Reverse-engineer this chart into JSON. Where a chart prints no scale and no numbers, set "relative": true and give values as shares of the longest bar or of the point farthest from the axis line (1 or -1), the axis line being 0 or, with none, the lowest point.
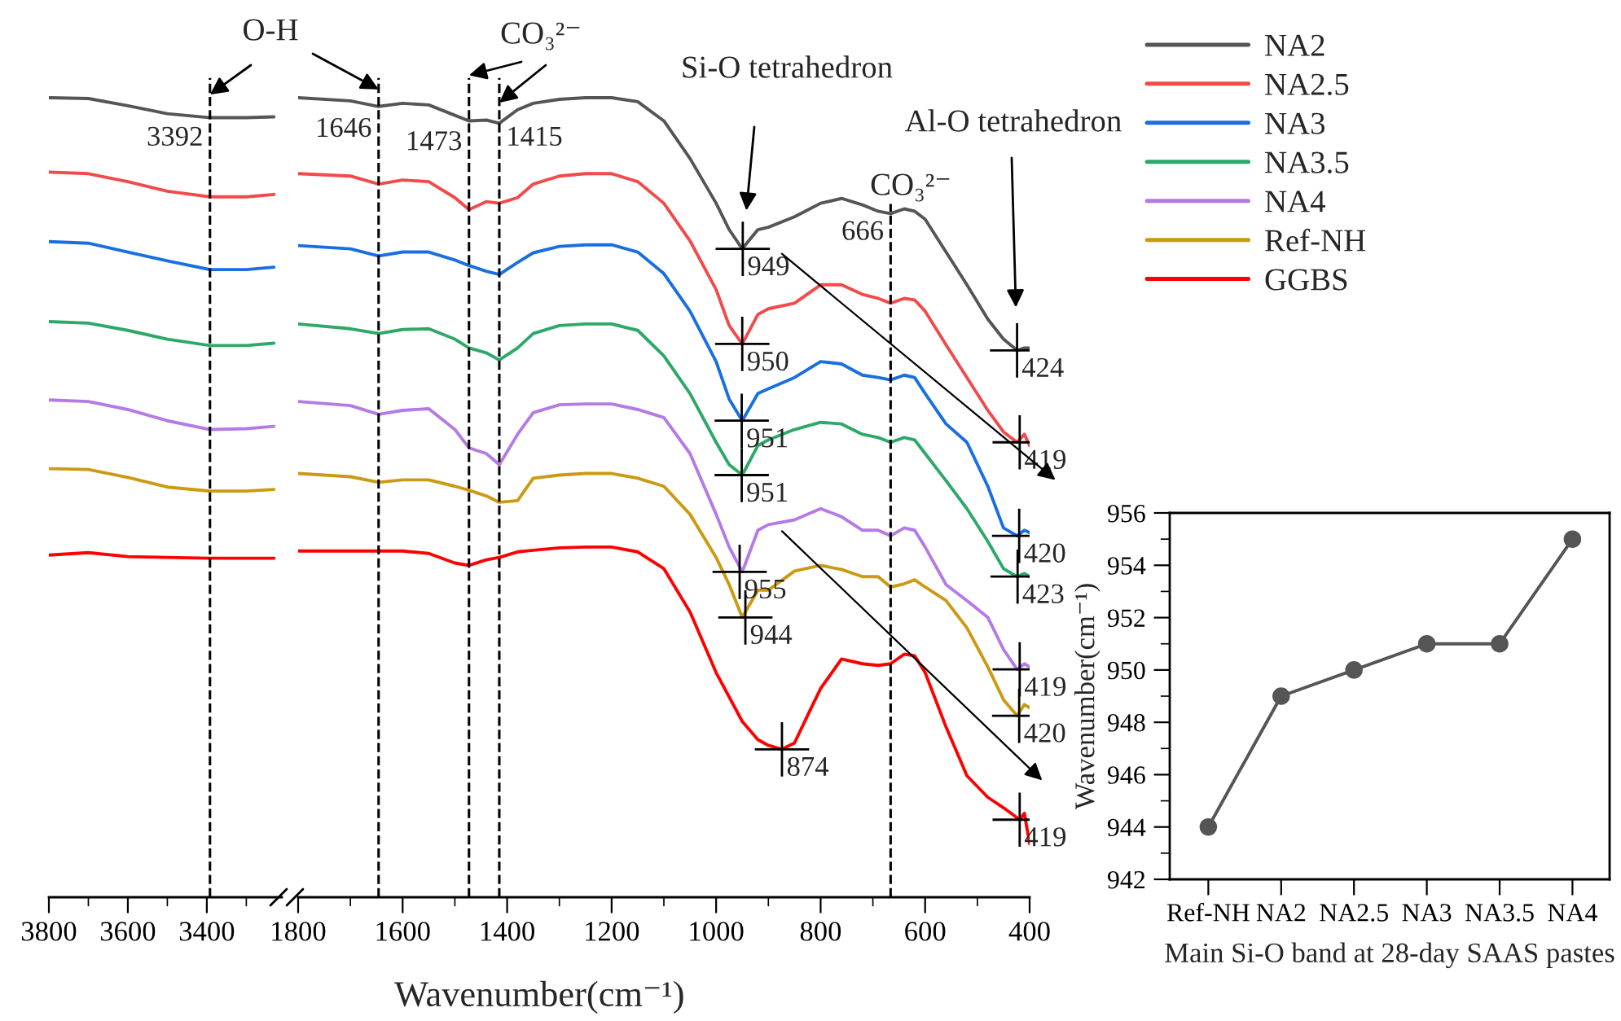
{
  "chart_data": [
    {
      "type": "line",
      "relative": true,
      "x": [
        3800,
        3700,
        3600,
        3500,
        3392,
        3300,
        3230
      ],
      "xlim": [
        3800,
        3210
      ],
      "xticks": [
        3800,
        {
          "value": 3700,
          "label": null
        },
        3600,
        {
          "value": 3500,
          "label": null
        },
        3400,
        {
          "value": 3300,
          "label": null
        }
      ],
      "series": [
        {
          "color": "#555555",
          "values": [
            1.0,
            0.999,
            0.99,
            0.98,
            0.975,
            0.975,
            0.976
          ]
        },
        {
          "color": "#f24a4a",
          "values": [
            0.907,
            0.905,
            0.895,
            0.883,
            0.876,
            0.876,
            0.879
          ]
        },
        {
          "color": "#1a6fe0",
          "values": [
            0.82,
            0.818,
            0.807,
            0.796,
            0.785,
            0.785,
            0.788
          ]
        },
        {
          "color": "#2ca868",
          "values": [
            0.72,
            0.718,
            0.709,
            0.698,
            0.69,
            0.69,
            0.693
          ]
        },
        {
          "color": "#b47ae6",
          "values": [
            0.622,
            0.62,
            0.61,
            0.596,
            0.585,
            0.586,
            0.589
          ]
        },
        {
          "color": "#cc9a12",
          "values": [
            0.536,
            0.535,
            0.525,
            0.513,
            0.508,
            0.508,
            0.51
          ]
        },
        {
          "color": "#ff0000",
          "values": [
            0.428,
            0.431,
            0.426,
            0.425,
            0.424,
            0.424,
            0.424
          ]
        }
      ],
      "ref_lines": [
        {
          "axis": "x",
          "value": 3392,
          "label": "3392"
        }
      ],
      "annotations": [
        "O-H"
      ]
    },
    {
      "type": "line",
      "relative": true,
      "xlabel": "Wavenumber(cm⁻¹)",
      "legend": "right",
      "x": [
        1800,
        1700,
        1646,
        1600,
        1550,
        1500,
        1473,
        1440,
        1415,
        1380,
        1350,
        1300,
        1250,
        1200,
        1150,
        1100,
        1050,
        1000,
        975,
        950,
        920,
        900,
        850,
        800,
        760,
        720,
        690,
        666,
        640,
        620,
        600,
        560,
        520,
        480,
        450,
        424,
        410,
        400
      ],
      "xlim": [
        1800,
        400
      ],
      "xticks": [
        1800,
        {
          "value": 1700,
          "label": null
        },
        1600,
        {
          "value": 1500,
          "label": null
        },
        1400,
        {
          "value": 1300,
          "label": null
        },
        1200,
        {
          "value": 1100,
          "label": null
        },
        1000,
        {
          "value": 900,
          "label": null
        },
        800,
        {
          "value": 700,
          "label": null
        },
        600,
        {
          "value": 500,
          "label": null
        },
        400
      ],
      "series": [
        {
          "name": "NA2",
          "color": "#555555",
          "values": [
            1.0,
            0.996,
            0.989,
            0.993,
            0.991,
            0.978,
            0.971,
            0.972,
            0.968,
            0.985,
            0.993,
            0.998,
            1.0,
            1.0,
            0.995,
            0.971,
            0.924,
            0.868,
            0.835,
            0.811,
            0.835,
            0.838,
            0.851,
            0.868,
            0.874,
            0.866,
            0.858,
            0.855,
            0.861,
            0.858,
            0.848,
            0.807,
            0.766,
            0.723,
            0.698,
            0.684,
            0.687,
            0.687
          ]
        },
        {
          "name": "NA2.5",
          "color": "#f24a4a",
          "values": [
            0.905,
            0.902,
            0.892,
            0.897,
            0.895,
            0.875,
            0.86,
            0.87,
            0.868,
            0.875,
            0.892,
            0.902,
            0.905,
            0.905,
            0.895,
            0.868,
            0.821,
            0.76,
            0.715,
            0.692,
            0.729,
            0.736,
            0.743,
            0.766,
            0.766,
            0.754,
            0.749,
            0.743,
            0.749,
            0.747,
            0.733,
            0.691,
            0.65,
            0.609,
            0.582,
            0.569,
            0.579,
            0.565
          ]
        },
        {
          "name": "NA3",
          "color": "#1a6fe0",
          "values": [
            0.815,
            0.811,
            0.802,
            0.807,
            0.807,
            0.797,
            0.79,
            0.783,
            0.779,
            0.794,
            0.806,
            0.814,
            0.816,
            0.816,
            0.807,
            0.78,
            0.733,
            0.67,
            0.623,
            0.596,
            0.63,
            0.636,
            0.65,
            0.67,
            0.667,
            0.653,
            0.65,
            0.647,
            0.653,
            0.65,
            0.63,
            0.592,
            0.569,
            0.514,
            0.462,
            0.452,
            0.459,
            0.456
          ]
        },
        {
          "name": "NA3.5",
          "color": "#2ca868",
          "values": [
            0.717,
            0.711,
            0.705,
            0.71,
            0.711,
            0.698,
            0.687,
            0.681,
            0.672,
            0.687,
            0.705,
            0.715,
            0.717,
            0.717,
            0.709,
            0.677,
            0.63,
            0.569,
            0.541,
            0.528,
            0.565,
            0.572,
            0.585,
            0.594,
            0.592,
            0.579,
            0.575,
            0.569,
            0.575,
            0.572,
            0.555,
            0.521,
            0.486,
            0.445,
            0.411,
            0.401,
            0.405,
            0.401
          ]
        },
        {
          "name": "NA4",
          "color": "#b47ae6",
          "values": [
            0.62,
            0.615,
            0.604,
            0.609,
            0.611,
            0.585,
            0.562,
            0.555,
            0.541,
            0.579,
            0.606,
            0.616,
            0.617,
            0.617,
            0.61,
            0.6,
            0.555,
            0.479,
            0.438,
            0.407,
            0.459,
            0.466,
            0.472,
            0.486,
            0.476,
            0.459,
            0.459,
            0.452,
            0.462,
            0.459,
            0.438,
            0.391,
            0.371,
            0.35,
            0.31,
            0.285,
            0.292,
            0.288
          ]
        },
        {
          "name": "Ref-NH",
          "color": "#cc9a12",
          "values": [
            0.53,
            0.526,
            0.519,
            0.522,
            0.522,
            0.514,
            0.509,
            0.502,
            0.494,
            0.496,
            0.524,
            0.528,
            0.53,
            0.53,
            0.524,
            0.514,
            0.479,
            0.425,
            0.391,
            0.35,
            0.384,
            0.384,
            0.408,
            0.415,
            0.41,
            0.401,
            0.401,
            0.388,
            0.392,
            0.397,
            0.388,
            0.371,
            0.337,
            0.288,
            0.247,
            0.227,
            0.241,
            0.237
          ]
        },
        {
          "name": "GGBS",
          "color": "#ff0000",
          "x": [
            1800,
            1700,
            1646,
            1600,
            1550,
            1500,
            1473,
            1440,
            1415,
            1380,
            1350,
            1300,
            1250,
            1200,
            1150,
            1100,
            1050,
            1000,
            950,
            920,
            900,
            874,
            850,
            820,
            800,
            760,
            720,
            690,
            666,
            640,
            620,
            600,
            560,
            520,
            480,
            450,
            419,
            410,
            400
          ],
          "values": [
            0.433,
            0.433,
            0.433,
            0.433,
            0.43,
            0.418,
            0.415,
            0.422,
            0.425,
            0.432,
            0.434,
            0.437,
            0.438,
            0.438,
            0.432,
            0.411,
            0.357,
            0.281,
            0.22,
            0.197,
            0.19,
            0.185,
            0.193,
            0.234,
            0.261,
            0.298,
            0.292,
            0.29,
            0.292,
            0.304,
            0.302,
            0.281,
            0.213,
            0.152,
            0.125,
            0.112,
            0.097,
            0.105,
            0.067
          ]
        }
      ],
      "ref_lines": [
        {
          "axis": "x",
          "value": 1646,
          "label": "1646"
        },
        {
          "axis": "x",
          "value": 1473,
          "label": "1473"
        },
        {
          "axis": "x",
          "value": 1415,
          "label": "1415"
        },
        {
          "axis": "x",
          "value": 666,
          "label": "666"
        }
      ],
      "annotations": [
        "CO₃²⁻",
        "Si-O tetrahedron",
        "Al-O tetrahedron",
        "CO₃²⁻",
        {
          "text": "949",
          "x": 949,
          "y": 0.811
        },
        {
          "text": "950",
          "x": 950,
          "y": 0.692
        },
        {
          "text": "951",
          "x": 951,
          "y": 0.596
        },
        {
          "text": "951",
          "x": 951,
          "y": 0.528
        },
        {
          "text": "955",
          "x": 955,
          "y": 0.407
        },
        {
          "text": "944",
          "x": 944,
          "y": 0.35
        },
        {
          "text": "874",
          "x": 874,
          "y": 0.185
        },
        {
          "text": "424",
          "x": 424,
          "y": 0.684
        },
        {
          "text": "419",
          "x": 419,
          "y": 0.569
        },
        {
          "text": "420",
          "x": 420,
          "y": 0.452
        },
        {
          "text": "423",
          "x": 423,
          "y": 0.401
        },
        {
          "text": "419",
          "x": 419,
          "y": 0.285
        },
        {
          "text": "420",
          "x": 420,
          "y": 0.227
        },
        {
          "text": "419",
          "x": 419,
          "y": 0.097
        }
      ]
    },
    {
      "type": "line",
      "marker": "circle",
      "xlabel": "Main Si-O band at 28-day SAAS pastes",
      "ylabel": "Wavenumber(cm⁻¹)",
      "categories": [
        "Ref-NH",
        "NA2",
        "NA2.5",
        "NA3",
        "NA3.5",
        "NA4"
      ],
      "series": [
        {
          "color": "#555555",
          "values": [
            944,
            949,
            950,
            951,
            951,
            955
          ]
        }
      ],
      "ylim": [
        942,
        956
      ],
      "yticks": [
        942,
        {
          "value": 943,
          "label": null
        },
        944,
        {
          "value": 945,
          "label": null
        },
        946,
        {
          "value": 947,
          "label": null
        },
        948,
        {
          "value": 949,
          "label": null
        },
        950,
        {
          "value": 951,
          "label": null
        },
        952,
        {
          "value": 953,
          "label": null
        },
        954,
        {
          "value": 955,
          "label": null
        },
        956
      ]
    }
  ]
}
